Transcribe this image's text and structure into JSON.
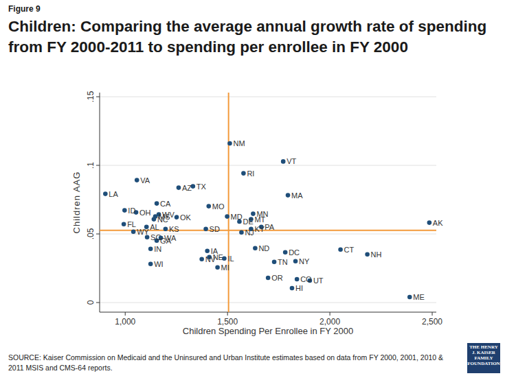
{
  "chart_data": {
    "type": "scatter",
    "figure_label": "Figure 9",
    "title": "Children: Comparing the average annual growth rate of spending from FY 2000-2011 to spending per enrollee in FY 2000",
    "x_label": "Children Spending Per Enrollee in FY 2000",
    "y_label": "Children AAG",
    "source": "SOURCE: Kaiser Commission on Medicaid and the Uninsured and Urban Institute estimates based on data from FY 2000, 2001, 2010 & 2011 MSIS and CMS-64 reports.",
    "logo": "THE HENRY J. KAISER FAMILY FOUNDATION",
    "color": "#1f4e79",
    "marker": "circle",
    "grid": true,
    "xlim": [
      875,
      2520
    ],
    "ylim": [
      -0.007,
      0.153
    ],
    "xticks": [
      {
        "value": 1000,
        "label": "1,000"
      },
      {
        "value": 1500,
        "label": "1,500"
      },
      {
        "value": 2000,
        "label": "2,000"
      },
      {
        "value": 2500,
        "label": "2,500"
      }
    ],
    "yticks": [
      0,
      {
        "value": 0.05,
        "label": ".05"
      },
      {
        "value": 0.1,
        "label": ".1"
      },
      {
        "value": 0.15,
        "label": ".15"
      }
    ],
    "reference_lines": [
      {
        "axis": "x",
        "value": 1505,
        "color": "#f39a3a"
      },
      {
        "axis": "y",
        "value": 0.0526,
        "color": "#f39a3a"
      }
    ],
    "labels": [
      "NM",
      "VT",
      "RI",
      "VA",
      "TX",
      "AZ",
      "MA",
      "LA",
      "CA",
      "MO",
      "ID",
      "OH",
      "MN",
      "MT",
      "DE",
      "MD",
      "PA",
      "KY",
      "NJ",
      "ND",
      "OR",
      "TN",
      "DC",
      "CO",
      "UT",
      "HI",
      "NY",
      "CT",
      "NH",
      "ME",
      "AK",
      "WV",
      "MS",
      "NC",
      "OK",
      "FL",
      "AL",
      "KS",
      "SD",
      "WY",
      "SC",
      "WA",
      "GA",
      "IN",
      "IA",
      "NE",
      "NV",
      "IL",
      "MI",
      "WI"
    ],
    "x": [
      1511,
      1772,
      1578,
      1057,
      1331,
      1261,
      1795,
      903,
      1154,
      1408,
      997,
      1053,
      1625,
      1615,
      1558,
      1498,
      1665,
      1615,
      1568,
      1635,
      1698,
      1728,
      1782,
      1839,
      1902,
      1815,
      1832,
      2052,
      2183,
      2390,
      2486,
      1164,
      1147,
      1140,
      1251,
      993,
      1104,
      1197,
      1394,
      1040,
      1107,
      1174,
      1154,
      1124,
      1401,
      1411,
      1374,
      1484,
      1451,
      1124
    ],
    "values": [
      0.116,
      0.1028,
      0.0942,
      0.0892,
      0.0847,
      0.0837,
      0.0782,
      0.0792,
      0.0722,
      0.0702,
      0.0672,
      0.0657,
      0.0647,
      0.0607,
      0.059,
      0.0627,
      0.0551,
      0.0536,
      0.0511,
      0.0396,
      0.018,
      0.0296,
      0.0366,
      0.017,
      0.016,
      0.0105,
      0.0301,
      0.0386,
      0.0351,
      0.004,
      0.0582,
      0.0642,
      0.0627,
      0.0607,
      0.0622,
      0.0571,
      0.0551,
      0.0536,
      0.0536,
      0.0516,
      0.0476,
      0.0471,
      0.0451,
      0.0391,
      0.0376,
      0.0331,
      0.0316,
      0.0321,
      0.0256,
      0.0281
    ]
  }
}
